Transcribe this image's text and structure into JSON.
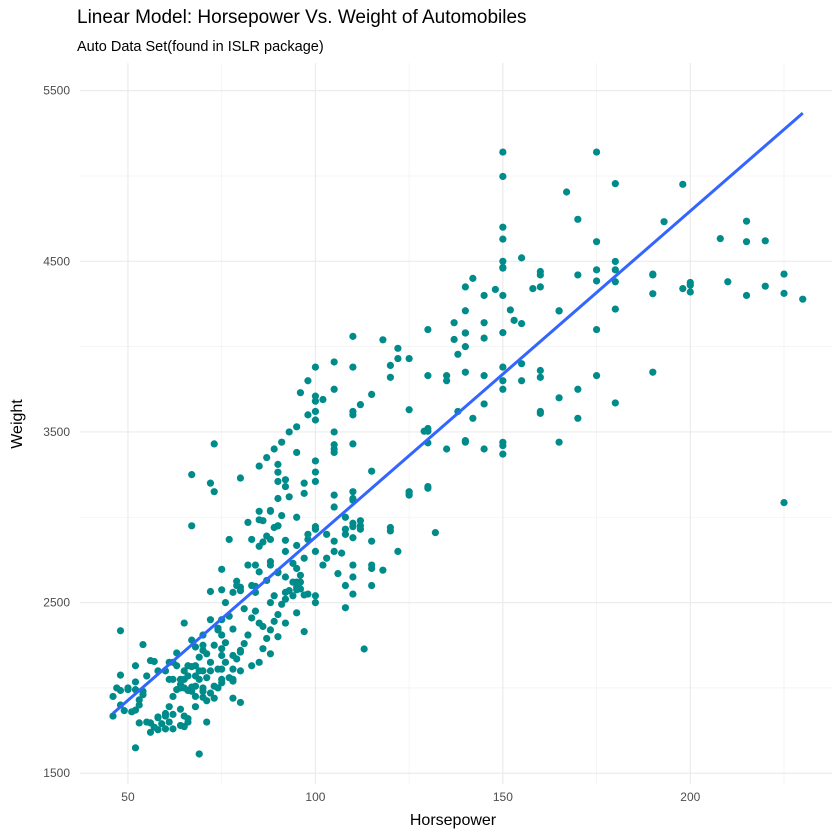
{
  "chart_data": {
    "type": "scatter",
    "title": "Linear Model: Horsepower Vs. Weight of Automobiles",
    "subtitle": "Auto Data Set(found in ISLR package)",
    "xlabel": "Horsepower",
    "ylabel": "Weight",
    "xlim": [
      37.2,
      237.8
    ],
    "ylim": [
      1437,
      5662
    ],
    "x_ticks": [
      50,
      100,
      150,
      200
    ],
    "y_ticks": [
      1500,
      2500,
      3500,
      4500,
      5500
    ],
    "x_minor": [
      75,
      125,
      175,
      225
    ],
    "y_minor": [
      2000,
      3000,
      4000,
      5000
    ],
    "grid": true,
    "point_color": "#008b8b",
    "line_color": "#3366ff",
    "fit_line": {
      "x": [
        46,
        230
      ],
      "y": [
        1851,
        5368
      ]
    },
    "points": [
      [
        46,
        1835
      ],
      [
        46,
        1950
      ],
      [
        48,
        2335
      ],
      [
        48,
        2075
      ],
      [
        49,
        1867
      ],
      [
        48,
        1985
      ],
      [
        52,
        1649
      ],
      [
        52,
        2130
      ],
      [
        52,
        2035
      ],
      [
        53,
        1795
      ],
      [
        54,
        2254
      ],
      [
        56,
        1795
      ],
      [
        58,
        1755
      ],
      [
        58,
        1825
      ],
      [
        60,
        1760
      ],
      [
        60,
        1835
      ],
      [
        61,
        1800
      ],
      [
        61,
        2150
      ],
      [
        62,
        2050
      ],
      [
        62,
        1845
      ],
      [
        63,
        2205
      ],
      [
        64,
        1875
      ],
      [
        64,
        2000
      ],
      [
        65,
        1835
      ],
      [
        65,
        1773
      ],
      [
        65,
        2050
      ],
      [
        65,
        2380
      ],
      [
        66,
        1800
      ],
      [
        66,
        1985
      ],
      [
        67,
        2950
      ],
      [
        67,
        3250
      ],
      [
        67,
        1980
      ],
      [
        67,
        2125
      ],
      [
        68,
        1950
      ],
      [
        68,
        2070
      ],
      [
        68,
        2130
      ],
      [
        69,
        1613
      ],
      [
        69,
        2100
      ],
      [
        69,
        2180
      ],
      [
        70,
        1945
      ],
      [
        70,
        2000
      ],
      [
        70,
        2220
      ],
      [
        70,
        2250
      ],
      [
        71,
        1925
      ],
      [
        71,
        1800
      ],
      [
        72,
        2100
      ],
      [
        72,
        3200
      ],
      [
        72,
        2400
      ],
      [
        72,
        2565
      ],
      [
        73,
        3430
      ],
      [
        73,
        3150
      ],
      [
        74,
        2350
      ],
      [
        74,
        2110
      ],
      [
        75,
        2110
      ],
      [
        75,
        2230
      ],
      [
        75,
        2310
      ],
      [
        75,
        2190
      ],
      [
        75,
        2695
      ],
      [
        75,
        2575
      ],
      [
        76,
        2265
      ],
      [
        77,
        2870
      ],
      [
        78,
        2040
      ],
      [
        78,
        2345
      ],
      [
        78,
        2190
      ],
      [
        78,
        1940
      ],
      [
        79,
        2625
      ],
      [
        80,
        1915
      ],
      [
        80,
        2220
      ],
      [
        80,
        3230
      ],
      [
        80,
        2590
      ],
      [
        81,
        2464
      ],
      [
        82,
        2720
      ],
      [
        83,
        2600
      ],
      [
        84,
        2595
      ],
      [
        85,
        2985
      ],
      [
        85,
        3035
      ],
      [
        86,
        2855
      ],
      [
        87,
        2890
      ],
      [
        88,
        2720
      ],
      [
        88,
        2500
      ],
      [
        88,
        3035
      ],
      [
        89,
        2540
      ],
      [
        90,
        2675
      ],
      [
        90,
        2950
      ],
      [
        90,
        3210
      ],
      [
        92,
        2800
      ],
      [
        92,
        2865
      ],
      [
        95,
        2835
      ],
      [
        95,
        2575
      ],
      [
        96,
        2620
      ],
      [
        97,
        2330
      ],
      [
        97,
        2545
      ],
      [
        98,
        2900
      ],
      [
        100,
        2945
      ],
      [
        100,
        3265
      ],
      [
        100,
        3570
      ],
      [
        102,
        2720
      ],
      [
        105,
        3380
      ],
      [
        105,
        3060
      ],
      [
        107,
        2790
      ],
      [
        108,
        2930
      ],
      [
        110,
        3620
      ],
      [
        110,
        3880
      ],
      [
        110,
        2945
      ],
      [
        112,
        2950
      ],
      [
        113,
        2228
      ],
      [
        115,
        2720
      ],
      [
        120,
        3820
      ],
      [
        122,
        3990
      ],
      [
        125,
        3930
      ],
      [
        129,
        3504
      ],
      [
        130,
        3436
      ],
      [
        130,
        3504
      ],
      [
        130,
        3830
      ],
      [
        132,
        2910
      ],
      [
        135,
        3830
      ],
      [
        137,
        4042
      ],
      [
        138,
        3955
      ],
      [
        140,
        4080
      ],
      [
        140,
        3449
      ],
      [
        145,
        3664
      ],
      [
        145,
        4140
      ],
      [
        148,
        4335
      ],
      [
        150,
        3439
      ],
      [
        150,
        4082
      ],
      [
        150,
        4464
      ],
      [
        150,
        5140
      ],
      [
        152,
        4215
      ],
      [
        153,
        4154
      ],
      [
        155,
        4135
      ],
      [
        158,
        4340
      ],
      [
        160,
        3609
      ],
      [
        165,
        4209
      ],
      [
        167,
        4906
      ],
      [
        170,
        4746
      ],
      [
        175,
        4385
      ],
      [
        175,
        4615
      ],
      [
        180,
        4499
      ],
      [
        180,
        4380
      ],
      [
        190,
        4425
      ],
      [
        193,
        4732
      ],
      [
        198,
        4951
      ],
      [
        200,
        4376
      ],
      [
        208,
        4633
      ],
      [
        210,
        4380
      ],
      [
        215,
        4735
      ],
      [
        215,
        4615
      ],
      [
        215,
        4300
      ],
      [
        220,
        4354
      ],
      [
        225,
        4312
      ],
      [
        225,
        4425
      ],
      [
        225,
        3086
      ],
      [
        230,
        4278
      ],
      [
        175,
        5140
      ],
      [
        150,
        4997
      ],
      [
        180,
        4955
      ],
      [
        90,
        3264
      ],
      [
        88,
        2740
      ],
      [
        86,
        2230
      ],
      [
        84,
        2560
      ],
      [
        92,
        2380
      ],
      [
        95,
        2590
      ],
      [
        100,
        2800
      ],
      [
        110,
        2720
      ],
      [
        100,
        3880
      ],
      [
        105,
        3400
      ],
      [
        110,
        3100
      ],
      [
        105,
        3425
      ],
      [
        88,
        3040
      ],
      [
        92,
        3180
      ],
      [
        90,
        3110
      ],
      [
        95,
        3380
      ],
      [
        110,
        3150
      ],
      [
        100,
        3620
      ],
      [
        105,
        3500
      ],
      [
        100,
        3680
      ],
      [
        145,
        3400
      ],
      [
        150,
        3370
      ],
      [
        140,
        4000
      ],
      [
        165,
        3440
      ],
      [
        150,
        4300
      ],
      [
        165,
        4210
      ],
      [
        175,
        4100
      ],
      [
        180,
        4450
      ],
      [
        190,
        4310
      ],
      [
        198,
        4340
      ],
      [
        200,
        4360
      ],
      [
        220,
        4620
      ],
      [
        150,
        4460
      ],
      [
        140,
        4080
      ],
      [
        150,
        4630
      ],
      [
        150,
        4700
      ],
      [
        160,
        4420
      ],
      [
        142,
        4400
      ],
      [
        140,
        4350
      ],
      [
        150,
        3880
      ],
      [
        155,
        3900
      ],
      [
        160,
        3860
      ],
      [
        170,
        3750
      ],
      [
        180,
        3670
      ],
      [
        190,
        3850
      ],
      [
        160,
        4350
      ],
      [
        145,
        4050
      ],
      [
        137,
        4140
      ],
      [
        120,
        3890
      ],
      [
        125,
        3630
      ],
      [
        130,
        3170
      ],
      [
        125,
        3140
      ],
      [
        110,
        3430
      ],
      [
        115,
        3270
      ],
      [
        110,
        3110
      ],
      [
        105,
        3130
      ],
      [
        100,
        3330
      ],
      [
        97,
        3200
      ],
      [
        95,
        3000
      ],
      [
        90,
        2950
      ],
      [
        88,
        2870
      ],
      [
        86,
        2980
      ],
      [
        85,
        2830
      ],
      [
        84,
        2720
      ],
      [
        83,
        2870
      ],
      [
        82,
        2970
      ],
      [
        80,
        2570
      ],
      [
        79,
        2600
      ],
      [
        78,
        2560
      ],
      [
        77,
        2420
      ],
      [
        76,
        2500
      ],
      [
        75,
        2400
      ],
      [
        74,
        2340
      ],
      [
        73,
        2250
      ],
      [
        72,
        2150
      ],
      [
        71,
        2200
      ],
      [
        70,
        2100
      ],
      [
        69,
        2050
      ],
      [
        68,
        2010
      ],
      [
        67,
        2005
      ],
      [
        66,
        2130
      ],
      [
        65,
        2000
      ],
      [
        64,
        2050
      ],
      [
        63,
        2130
      ],
      [
        62,
        2150
      ],
      [
        61,
        2050
      ],
      [
        60,
        2100
      ],
      [
        58,
        2100
      ],
      [
        57,
        2155
      ],
      [
        56,
        2160
      ],
      [
        55,
        2070
      ],
      [
        54,
        1980
      ],
      [
        53,
        1930
      ],
      [
        52,
        1990
      ],
      [
        50,
        2000
      ],
      [
        48,
        1900
      ],
      [
        47,
        2000
      ],
      [
        115,
        2860
      ],
      [
        110,
        2965
      ],
      [
        108,
        2900
      ],
      [
        105,
        2860
      ],
      [
        103,
        2900
      ],
      [
        100,
        2930
      ],
      [
        98,
        2870
      ],
      [
        97,
        2760
      ],
      [
        95,
        2620
      ],
      [
        94,
        2540
      ],
      [
        93,
        2570
      ],
      [
        92,
        2520
      ],
      [
        91,
        2490
      ],
      [
        90,
        2430
      ],
      [
        89,
        2390
      ],
      [
        88,
        2340
      ],
      [
        87,
        2290
      ],
      [
        86,
        2360
      ],
      [
        85,
        2380
      ],
      [
        84,
        2450
      ],
      [
        83,
        2410
      ],
      [
        82,
        2310
      ],
      [
        81,
        2260
      ],
      [
        80,
        2210
      ],
      [
        79,
        2170
      ],
      [
        78,
        2110
      ],
      [
        77,
        2060
      ],
      [
        76,
        2150
      ],
      [
        75,
        2050
      ],
      [
        74,
        2000
      ],
      [
        73,
        1940
      ],
      [
        72,
        1970
      ],
      [
        71,
        2060
      ],
      [
        70,
        2310
      ],
      [
        68,
        2240
      ],
      [
        67,
        2280
      ],
      [
        66,
        2070
      ],
      [
        65,
        2100
      ],
      [
        64,
        2020
      ],
      [
        63,
        1990
      ],
      [
        62,
        1950
      ],
      [
        61,
        1890
      ],
      [
        60,
        1850
      ],
      [
        59,
        1790
      ],
      [
        58,
        1830
      ],
      [
        57,
        1770
      ],
      [
        56,
        1740
      ],
      [
        55,
        1800
      ],
      [
        54,
        1960
      ],
      [
        53,
        1900
      ],
      [
        52,
        1870
      ],
      [
        51,
        1860
      ],
      [
        50,
        1990
      ],
      [
        110,
        3600
      ],
      [
        112,
        3660
      ],
      [
        115,
        3720
      ],
      [
        100,
        3710
      ],
      [
        105,
        3750
      ],
      [
        102,
        3690
      ],
      [
        98,
        3600
      ],
      [
        95,
        3530
      ],
      [
        93,
        3500
      ],
      [
        91,
        3440
      ],
      [
        89,
        3400
      ],
      [
        87,
        3350
      ],
      [
        85,
        3300
      ],
      [
        96,
        3730
      ],
      [
        98,
        3800
      ],
      [
        105,
        3910
      ],
      [
        110,
        4060
      ],
      [
        118,
        4040
      ],
      [
        122,
        3930
      ],
      [
        130,
        4100
      ],
      [
        140,
        4210
      ],
      [
        145,
        4300
      ],
      [
        150,
        4500
      ],
      [
        155,
        4520
      ],
      [
        160,
        4440
      ],
      [
        170,
        4420
      ],
      [
        175,
        4450
      ],
      [
        180,
        4220
      ],
      [
        190,
        4420
      ],
      [
        200,
        4320
      ],
      [
        170,
        3580
      ],
      [
        175,
        3830
      ],
      [
        165,
        3700
      ],
      [
        160,
        3620
      ],
      [
        150,
        3420
      ],
      [
        140,
        3440
      ],
      [
        135,
        3400
      ],
      [
        130,
        3180
      ],
      [
        125,
        3130
      ],
      [
        120,
        2920
      ],
      [
        115,
        2700
      ],
      [
        110,
        2650
      ],
      [
        108,
        2600
      ],
      [
        100,
        2500
      ],
      [
        95,
        2440
      ],
      [
        90,
        2300
      ],
      [
        88,
        2200
      ],
      [
        85,
        2150
      ],
      [
        83,
        2130
      ],
      [
        80,
        2100
      ],
      [
        78,
        2050
      ],
      [
        75,
        2030
      ],
      [
        73,
        2010
      ],
      [
        70,
        1980
      ],
      [
        68,
        1890
      ],
      [
        66,
        1820
      ],
      [
        64,
        1780
      ],
      [
        62,
        1760
      ],
      [
        90,
        3310
      ],
      [
        92,
        3220
      ],
      [
        100,
        3210
      ],
      [
        97,
        3140
      ],
      [
        93,
        3120
      ],
      [
        91,
        3010
      ],
      [
        89,
        2940
      ],
      [
        95,
        2700
      ],
      [
        96,
        2660
      ],
      [
        94,
        2730
      ],
      [
        92,
        2650
      ],
      [
        90,
        2680
      ],
      [
        87,
        2630
      ],
      [
        85,
        2680
      ],
      [
        92,
        2560
      ],
      [
        94,
        2620
      ],
      [
        96,
        2580
      ],
      [
        98,
        2550
      ],
      [
        100,
        2540
      ],
      [
        108,
        2470
      ],
      [
        110,
        2550
      ],
      [
        115,
        2600
      ],
      [
        118,
        2690
      ],
      [
        122,
        2800
      ],
      [
        110,
        2880
      ],
      [
        112,
        2930
      ],
      [
        120,
        2940
      ],
      [
        105,
        2800
      ],
      [
        103,
        2760
      ],
      [
        106,
        2670
      ],
      [
        108,
        3000
      ],
      [
        112,
        2980
      ],
      [
        125,
        3150
      ],
      [
        130,
        3520
      ],
      [
        135,
        3800
      ],
      [
        140,
        3850
      ],
      [
        145,
        3830
      ],
      [
        150,
        3800
      ],
      [
        150,
        3750
      ],
      [
        155,
        3800
      ],
      [
        160,
        3820
      ],
      [
        138,
        3620
      ],
      [
        142,
        3580
      ]
    ]
  }
}
